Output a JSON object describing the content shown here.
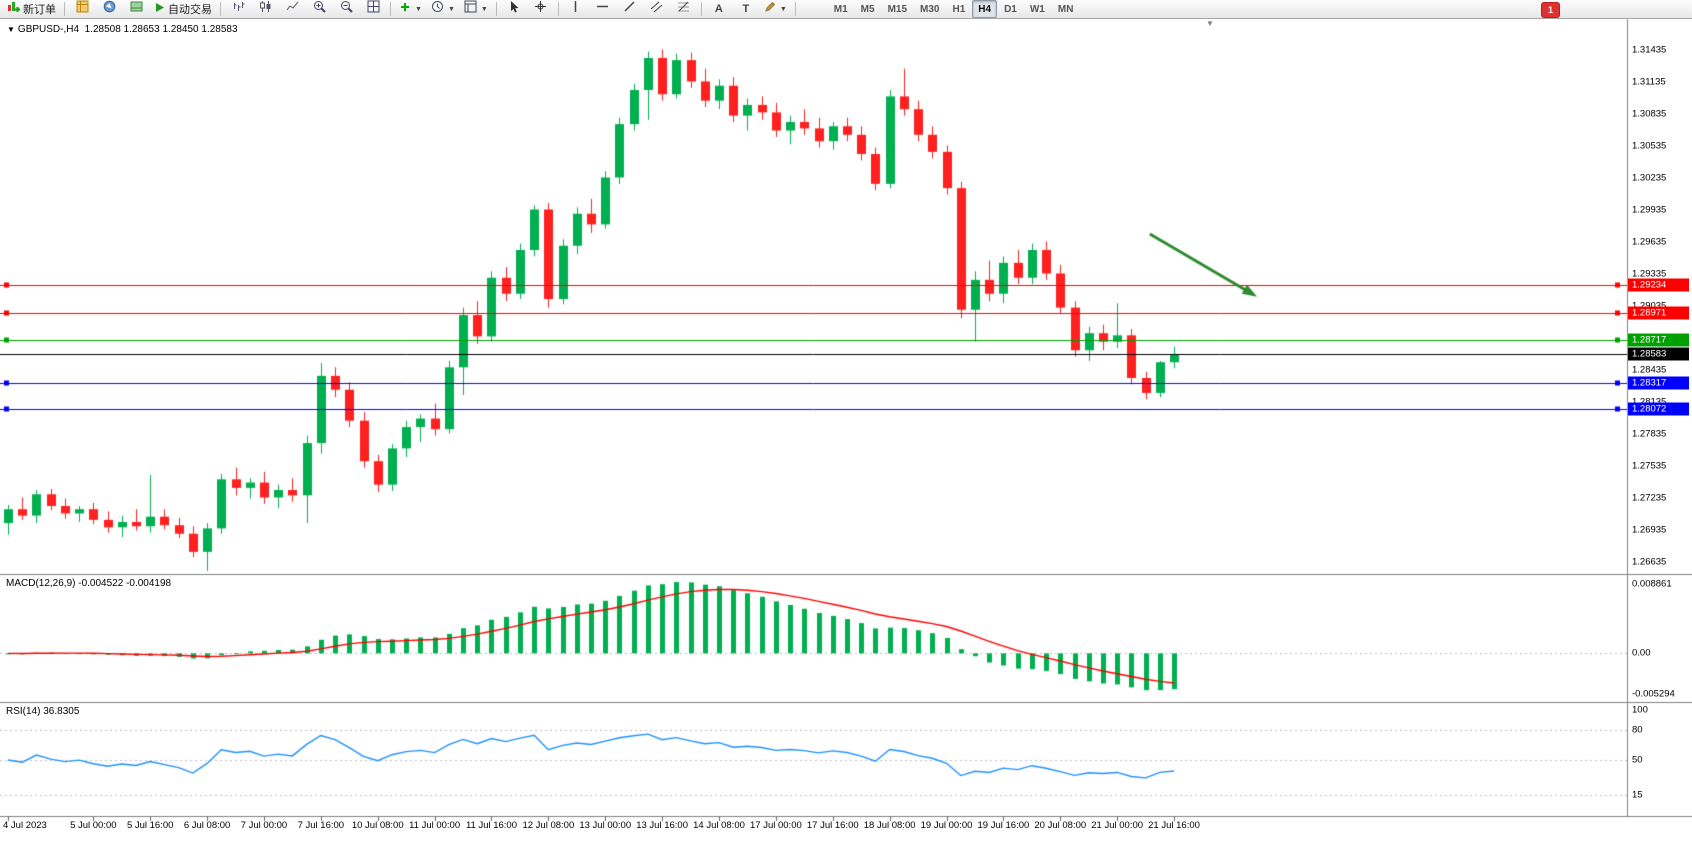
{
  "toolbar": {
    "new_order_label": "新订单",
    "autotrade_label": "自动交易",
    "timeframes": [
      "M1",
      "M5",
      "M15",
      "M30",
      "H1",
      "H4",
      "D1",
      "W1",
      "MN"
    ],
    "active_timeframe": "H4",
    "badge": "1"
  },
  "chart": {
    "symbol_period": "GBPUSD-,H4",
    "ohlc_text": "1.28508 1.28653 1.28450 1.28583"
  },
  "chart_data": {
    "type": "candlestick",
    "symbol": "GBPUSD-",
    "timeframe": "H4",
    "current_bar": {
      "open": 1.28508,
      "high": 1.28653,
      "low": 1.2845,
      "close": 1.28583
    },
    "price_axis": {
      "max": 1.31435,
      "min": 1.26635,
      "step": 0.003,
      "labels": [
        "1.31435",
        "1.31135",
        "1.30835",
        "1.30535",
        "1.30235",
        "1.29935",
        "1.29635",
        "1.29335",
        "1.29035",
        "1.28735",
        "1.28435",
        "1.28135",
        "1.27835",
        "1.27535",
        "1.27235",
        "1.26935",
        "1.26635"
      ]
    },
    "time_labels": [
      [
        0,
        "4 Jul 2023"
      ],
      [
        6,
        "5 Jul 00:00"
      ],
      [
        10,
        "5 Jul 16:00"
      ],
      [
        14,
        "6 Jul 08:00"
      ],
      [
        18,
        "7 Jul 00:00"
      ],
      [
        22,
        "7 Jul 16:00"
      ],
      [
        26,
        "10 Jul 08:00"
      ],
      [
        30,
        "11 Jul 00:00"
      ],
      [
        34,
        "11 Jul 16:00"
      ],
      [
        38,
        "12 Jul 08:00"
      ],
      [
        42,
        "13 Jul 00:00"
      ],
      [
        46,
        "13 Jul 16:00"
      ],
      [
        50,
        "14 Jul 08:00"
      ],
      [
        54,
        "17 Jul 00:00"
      ],
      [
        58,
        "17 Jul 16:00"
      ],
      [
        62,
        "18 Jul 08:00"
      ],
      [
        66,
        "19 Jul 00:00"
      ],
      [
        70,
        "19 Jul 16:00"
      ],
      [
        74,
        "20 Jul 08:00"
      ],
      [
        78,
        "21 Jul 00:00"
      ],
      [
        82,
        "21 Jul 16:00"
      ]
    ],
    "candles": [
      [
        1.27,
        1.2717,
        1.2689,
        1.2713
      ],
      [
        1.2713,
        1.2724,
        1.2703,
        1.2707
      ],
      [
        1.2707,
        1.2731,
        1.27,
        1.2727
      ],
      [
        1.2727,
        1.2732,
        1.2712,
        1.2716
      ],
      [
        1.2716,
        1.2723,
        1.2704,
        1.2709
      ],
      [
        1.2709,
        1.2716,
        1.2701,
        1.2713
      ],
      [
        1.2713,
        1.2719,
        1.2699,
        1.2703
      ],
      [
        1.2703,
        1.2711,
        1.2691,
        1.2696
      ],
      [
        1.2696,
        1.2707,
        1.2687,
        1.2701
      ],
      [
        1.2701,
        1.2713,
        1.2693,
        1.2697
      ],
      [
        1.2697,
        1.2745,
        1.2691,
        1.2706
      ],
      [
        1.2706,
        1.2713,
        1.2694,
        1.2698
      ],
      [
        1.2698,
        1.2705,
        1.2686,
        1.269
      ],
      [
        1.269,
        1.2697,
        1.2668,
        1.2673
      ],
      [
        1.2673,
        1.27,
        1.2655,
        1.2695
      ],
      [
        1.2695,
        1.2746,
        1.269,
        1.2741
      ],
      [
        1.2741,
        1.2752,
        1.2726,
        1.2733
      ],
      [
        1.2733,
        1.2742,
        1.2723,
        1.2738
      ],
      [
        1.2738,
        1.2748,
        1.2718,
        1.2724
      ],
      [
        1.2724,
        1.2736,
        1.2714,
        1.2731
      ],
      [
        1.2731,
        1.2742,
        1.272,
        1.2726
      ],
      [
        1.2726,
        1.2782,
        1.27,
        1.2775
      ],
      [
        1.2775,
        1.285,
        1.2765,
        1.2838
      ],
      [
        1.2838,
        1.2846,
        1.2818,
        1.2825
      ],
      [
        1.2825,
        1.2832,
        1.279,
        1.2796
      ],
      [
        1.2796,
        1.2804,
        1.2752,
        1.2758
      ],
      [
        1.2758,
        1.2764,
        1.2729,
        1.2736
      ],
      [
        1.2736,
        1.2774,
        1.273,
        1.277
      ],
      [
        1.277,
        1.2796,
        1.2762,
        1.279
      ],
      [
        1.279,
        1.2802,
        1.2776,
        1.2798
      ],
      [
        1.2798,
        1.2812,
        1.2782,
        1.2788
      ],
      [
        1.2788,
        1.2852,
        1.2784,
        1.2846
      ],
      [
        1.2846,
        1.2902,
        1.282,
        1.2895
      ],
      [
        1.2895,
        1.2908,
        1.2868,
        1.2875
      ],
      [
        1.2875,
        1.2936,
        1.287,
        1.293
      ],
      [
        1.293,
        1.294,
        1.2908,
        1.2915
      ],
      [
        1.2915,
        1.2962,
        1.291,
        1.2956
      ],
      [
        1.2956,
        1.2998,
        1.295,
        1.2994
      ],
      [
        1.2994,
        1.3,
        1.2902,
        1.291
      ],
      [
        1.291,
        1.2966,
        1.2905,
        1.296
      ],
      [
        1.296,
        1.2996,
        1.2952,
        1.299
      ],
      [
        1.299,
        1.3004,
        1.2972,
        1.298
      ],
      [
        1.298,
        1.303,
        1.2976,
        1.3024
      ],
      [
        1.3024,
        1.308,
        1.3018,
        1.3074
      ],
      [
        1.3074,
        1.3112,
        1.3068,
        1.3106
      ],
      [
        1.3106,
        1.3142,
        1.3078,
        1.3136
      ],
      [
        1.3136,
        1.3144,
        1.3096,
        1.3102
      ],
      [
        1.3102,
        1.314,
        1.3098,
        1.3134
      ],
      [
        1.3134,
        1.3141,
        1.3108,
        1.3114
      ],
      [
        1.3114,
        1.3126,
        1.309,
        1.3096
      ],
      [
        1.3096,
        1.3116,
        1.3088,
        1.311
      ],
      [
        1.311,
        1.3118,
        1.3076,
        1.3082
      ],
      [
        1.3082,
        1.3098,
        1.3068,
        1.3092
      ],
      [
        1.3092,
        1.31,
        1.3078,
        1.3085
      ],
      [
        1.3085,
        1.3094,
        1.3062,
        1.3068
      ],
      [
        1.3068,
        1.3082,
        1.3055,
        1.3076
      ],
      [
        1.3076,
        1.3088,
        1.3064,
        1.307
      ],
      [
        1.307,
        1.308,
        1.3052,
        1.3058
      ],
      [
        1.3058,
        1.3076,
        1.305,
        1.3072
      ],
      [
        1.3072,
        1.308,
        1.3058,
        1.3064
      ],
      [
        1.3064,
        1.3072,
        1.304,
        1.3046
      ],
      [
        1.3046,
        1.3052,
        1.3012,
        1.3018
      ],
      [
        1.3018,
        1.3106,
        1.3014,
        1.31
      ],
      [
        1.31,
        1.3126,
        1.3082,
        1.3088
      ],
      [
        1.3088,
        1.3096,
        1.3058,
        1.3064
      ],
      [
        1.3064,
        1.3072,
        1.3042,
        1.3048
      ],
      [
        1.3048,
        1.3054,
        1.3008,
        1.3014
      ],
      [
        1.3014,
        1.302,
        1.2892,
        1.29
      ],
      [
        1.29,
        1.2936,
        1.287,
        1.2928
      ],
      [
        1.2928,
        1.2946,
        1.2908,
        1.2915
      ],
      [
        1.2915,
        1.295,
        1.2906,
        1.2944
      ],
      [
        1.2944,
        1.2956,
        1.2924,
        1.293
      ],
      [
        1.293,
        1.2962,
        1.2924,
        1.2956
      ],
      [
        1.2956,
        1.2964,
        1.2928,
        1.2934
      ],
      [
        1.2934,
        1.2942,
        1.2896,
        1.2902
      ],
      [
        1.2902,
        1.2908,
        1.2856,
        1.2862
      ],
      [
        1.2862,
        1.2884,
        1.2852,
        1.2878
      ],
      [
        1.2878,
        1.2886,
        1.2862,
        1.287
      ],
      [
        1.287,
        1.2906,
        1.2864,
        1.2876
      ],
      [
        1.2876,
        1.2882,
        1.283,
        1.2836
      ],
      [
        1.2836,
        1.2842,
        1.2816,
        1.2822
      ],
      [
        1.2822,
        1.2852,
        1.2818,
        1.28508
      ],
      [
        1.28508,
        1.28653,
        1.2845,
        1.28583
      ]
    ],
    "colors": {
      "up": "#00B050",
      "down": "#FF2020",
      "bid": "#000000",
      "macd_hist": "#00B050",
      "macd_signal": "#FF0000",
      "rsi_line": "#1E90FF",
      "dash": "#C0C0C0"
    },
    "levels": [
      {
        "price": 1.29234,
        "label": "1.29234",
        "color": "#FF0000"
      },
      {
        "price": 1.28971,
        "label": "1.28971",
        "color": "#FF0000"
      },
      {
        "price": 1.28717,
        "label": "1.28717",
        "color": "#00A000"
      },
      {
        "price": 1.28317,
        "label": "1.28317",
        "color": "#0000FF"
      },
      {
        "price": 1.28072,
        "label": "1.28072",
        "color": "#0000FF"
      }
    ],
    "bid": {
      "price": 1.28583,
      "label": "1.28583",
      "color": "#000000"
    },
    "arrow": {
      "from_bar": 80.3,
      "from_price": 1.2971,
      "to_bar": 87.6,
      "to_price": 1.2914,
      "color": "#2E8B2E"
    },
    "macd": {
      "display": "MACD(12,26,9) -0.004522 -0.004198",
      "fast": 12,
      "slow": 26,
      "signal": 9,
      "value": -0.004522,
      "signal_value": -0.004198,
      "axis_labels": [
        "0.008861",
        "0.00",
        "-0.005294"
      ],
      "max": 0.008861,
      "min": -0.005294
    },
    "rsi": {
      "display": "RSI(14) 36.8305",
      "period": 14,
      "value": 36.8305,
      "axis_labels": [
        "100",
        "80",
        "50",
        "15"
      ],
      "levels": [
        80,
        50,
        15
      ],
      "max": 100,
      "min": 0
    }
  }
}
